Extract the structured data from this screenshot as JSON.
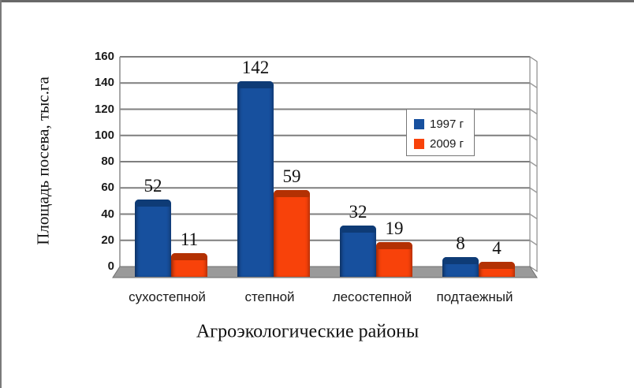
{
  "chart_data": {
    "type": "bar",
    "effect_3d": true,
    "categories": [
      "сухостепной",
      "степной",
      "лесостепной",
      "подтаежный"
    ],
    "series": [
      {
        "name": "1997 г",
        "color": "#17509E",
        "cap_color": "#0E3B76",
        "values": [
          52,
          142,
          32,
          8
        ]
      },
      {
        "name": "2009 г",
        "color": "#F8420A",
        "cap_color": "#B33103",
        "values": [
          11,
          59,
          19,
          4
        ]
      }
    ],
    "xlabel": "Агроэкологические районы",
    "ylabel": "Площадь посева, тыс.га",
    "ylim": [
      0,
      160
    ],
    "yticks": [
      0,
      20,
      40,
      60,
      80,
      100,
      120,
      140,
      160
    ],
    "grid": true,
    "legend_position": "inside-upper-right",
    "colors": {
      "gridline": "#7F7F7F",
      "wall_border": "#8C8C8C",
      "side_wall_line": "#9B9B9B",
      "floor": "#9A9A9A",
      "floor_edge": "#6F6F6F",
      "background": "#FFFFFF",
      "text": "#111111"
    }
  }
}
